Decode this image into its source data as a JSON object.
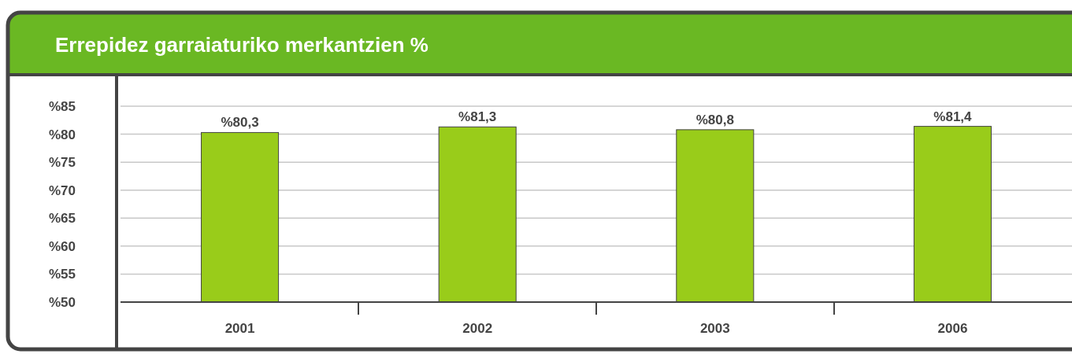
{
  "chart_data": {
    "type": "bar",
    "title": "Errepidez garraiaturiko merkantzien %",
    "categories": [
      "2001",
      "2002",
      "2003",
      "2006"
    ],
    "values": [
      80.3,
      81.3,
      80.8,
      81.4
    ],
    "value_labels": [
      "%80,3",
      "%81,3",
      "%80,8",
      "%81,4"
    ],
    "color": "#99cc1a",
    "ylim": [
      50,
      85
    ],
    "yticks": [
      {
        "value": 50,
        "label": "%50"
      },
      {
        "value": 55,
        "label": "%55"
      },
      {
        "value": 60,
        "label": "%60"
      },
      {
        "value": 65,
        "label": "%65"
      },
      {
        "value": 70,
        "label": "%70"
      },
      {
        "value": 75,
        "label": "%75"
      },
      {
        "value": 80,
        "label": "%80"
      },
      {
        "value": 85,
        "label": "%85"
      }
    ],
    "grid": "y"
  }
}
